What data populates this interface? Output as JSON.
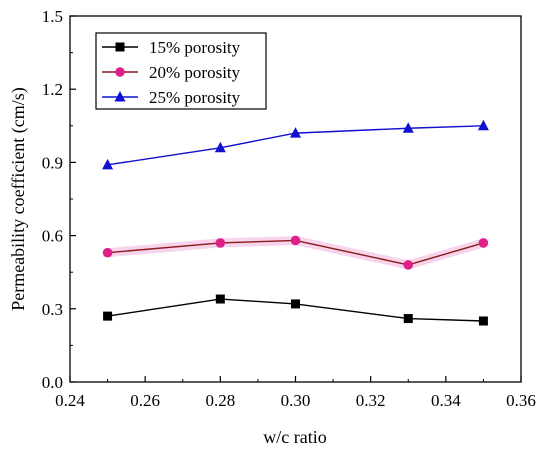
{
  "chart_data": {
    "type": "line",
    "xlabel": "w/c ratio",
    "ylabel": "Permeability coefficient (cm/s)",
    "xlim": [
      0.24,
      0.36
    ],
    "ylim": [
      0.0,
      1.5
    ],
    "xticks": [
      "0.24",
      "0.26",
      "0.28",
      "0.30",
      "0.32",
      "0.34",
      "0.36"
    ],
    "yticks": [
      "0.0",
      "0.3",
      "0.6",
      "0.9",
      "1.2",
      "1.5"
    ],
    "x": [
      0.25,
      0.28,
      0.3,
      0.33,
      0.35
    ],
    "legend_position": "top-left",
    "grid": false,
    "series": [
      {
        "name": "15% porosity",
        "values": [
          0.27,
          0.34,
          0.32,
          0.26,
          0.25
        ],
        "color": "#000000",
        "marker": "square"
      },
      {
        "name": "20% porosity",
        "values": [
          0.53,
          0.57,
          0.58,
          0.48,
          0.57
        ],
        "color": "#8b1a1a",
        "marker_color": "#e0208a",
        "marker": "circle"
      },
      {
        "name": "25% porosity",
        "values": [
          0.89,
          0.96,
          1.02,
          1.04,
          1.05
        ],
        "color": "#1010d0",
        "marker": "triangle"
      }
    ]
  }
}
